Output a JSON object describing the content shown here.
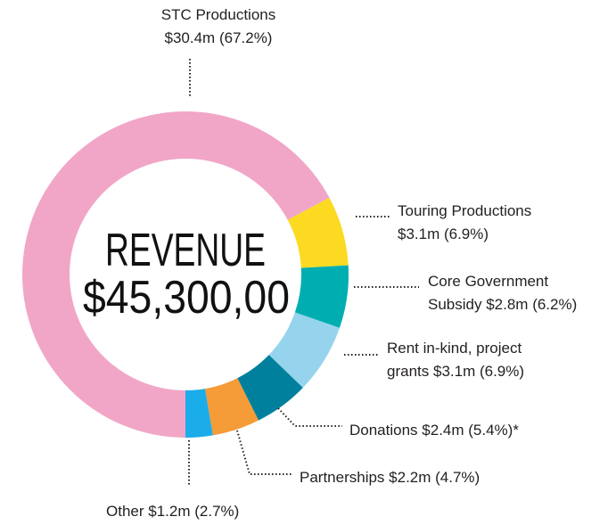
{
  "chart_data": {
    "type": "donut",
    "center_title": "REVENUE",
    "center_value": "$45,300,00",
    "categories": [
      "STC Productions",
      "Touring Productions",
      "Core Government Subsidy",
      "Rent in-kind, project grants",
      "Donations",
      "Partnerships",
      "Other"
    ],
    "values": [
      67.2,
      6.9,
      6.2,
      6.9,
      5.4,
      4.7,
      2.7
    ],
    "value_labels": [
      "$30.4m (67.2%)",
      "$3.1m (6.9%)",
      "$2.8m (6.2%)",
      "$3.1m (6.9%)",
      "$2.4m (5.4%)*",
      "$2.2m (4.7%)",
      "$1.2m (2.7%)"
    ],
    "colors": [
      "#f1a6c7",
      "#fcda22",
      "#00aeb2",
      "#95d4ec",
      "#00809c",
      "#f59b38",
      "#1badea"
    ]
  }
}
